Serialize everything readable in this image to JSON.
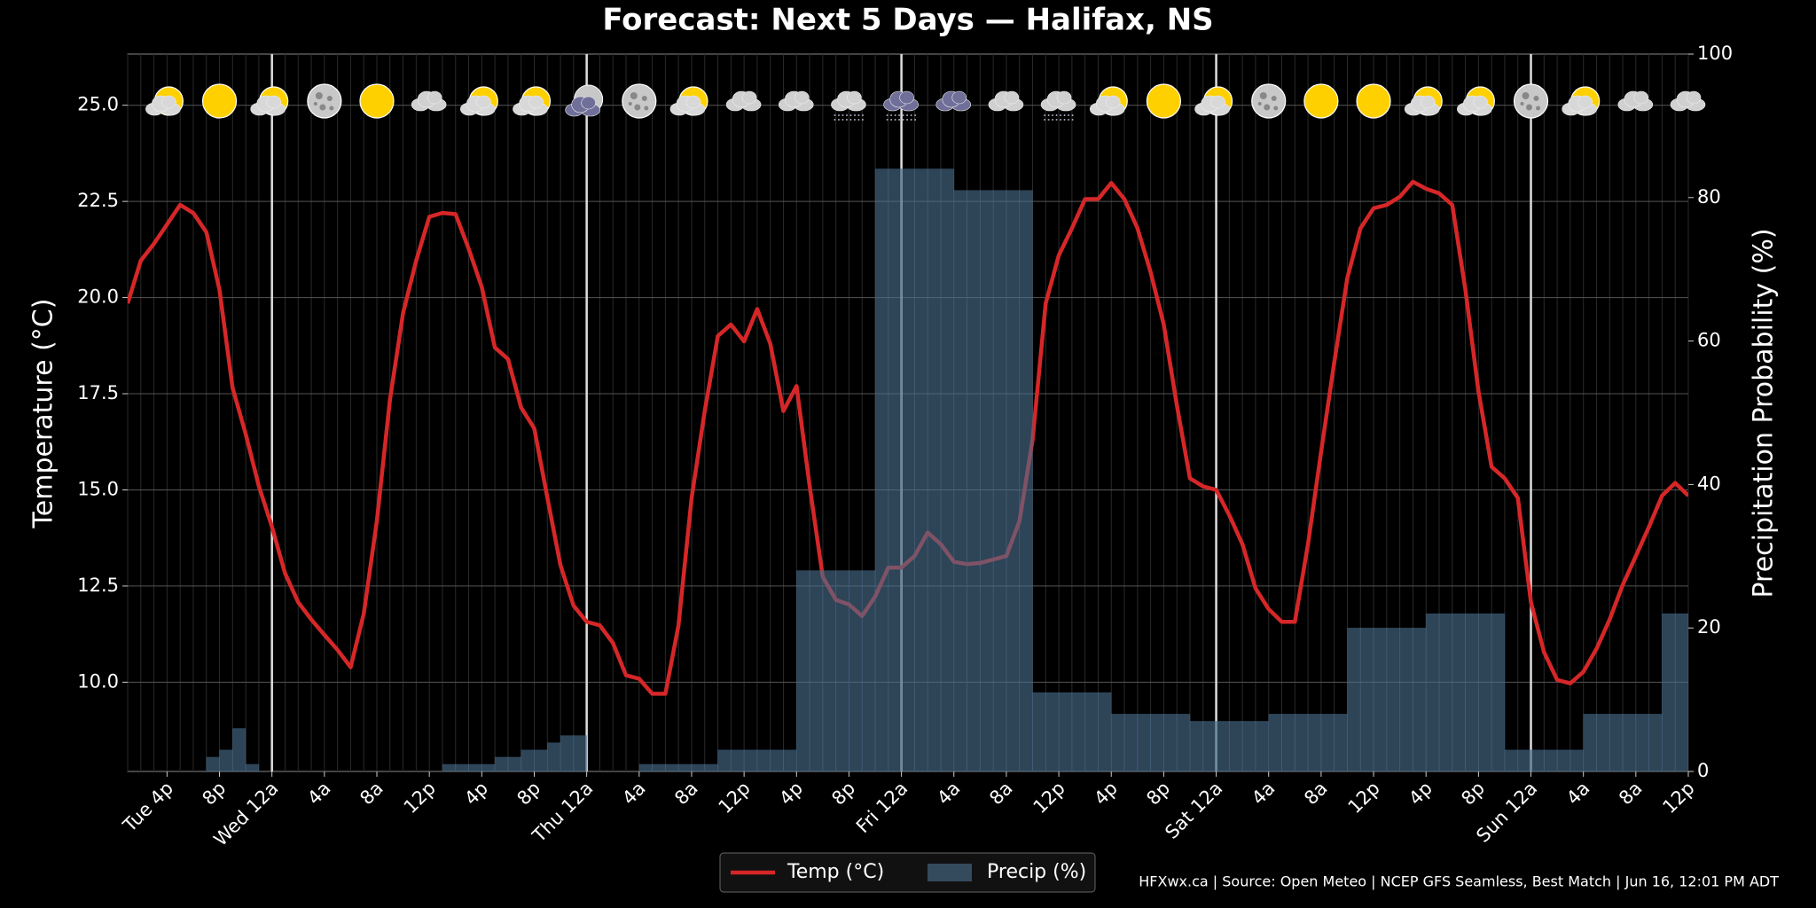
{
  "chart_data": {
    "type": "line_bar",
    "title": "Forecast: Next 5 Days — Halifax, NS",
    "y_label": "Temperature (°C)",
    "y2_label": "Precipitation Probability (%)",
    "source": "HFXwx.ca | Source: Open Meteo | NCEP GFS Seamless, Best Match | Jun 16, 12:01 PM ADT",
    "categories": [
      null,
      null,
      null,
      "Tue 4p",
      null,
      null,
      null,
      "8p",
      null,
      null,
      null,
      "Wed 12a",
      null,
      null,
      null,
      "4a",
      null,
      null,
      null,
      "8a",
      null,
      null,
      null,
      "12p",
      null,
      null,
      null,
      "4p",
      null,
      null,
      null,
      "8p",
      null,
      null,
      null,
      "Thu 12a",
      null,
      null,
      null,
      "4a",
      null,
      null,
      null,
      "8a",
      null,
      null,
      null,
      "12p",
      null,
      null,
      null,
      "4p",
      null,
      null,
      null,
      "8p",
      null,
      null,
      null,
      "Fri 12a",
      null,
      null,
      null,
      "4a",
      null,
      null,
      null,
      "8a",
      null,
      null,
      null,
      "12p",
      null,
      null,
      null,
      "4p",
      null,
      null,
      null,
      "8p",
      null,
      null,
      null,
      "Sat 12a",
      null,
      null,
      null,
      "4a",
      null,
      null,
      null,
      "8a",
      null,
      null,
      null,
      "12p",
      null,
      null,
      null,
      "4p",
      null,
      null,
      null,
      "8p",
      null,
      null,
      null,
      "Sun 12a",
      null,
      null,
      null,
      "4a",
      null,
      null,
      null,
      "8a",
      null,
      null,
      null,
      "12p"
    ],
    "series": [
      {
        "name": "Temp (°C)",
        "type": "line",
        "color": "#d62728",
        "values": [
          19.85,
          20.96,
          21.4,
          21.9,
          22.41,
          22.2,
          21.7,
          20.2,
          17.65,
          16.45,
          15.1,
          14.04,
          12.83,
          12.08,
          11.63,
          11.23,
          10.84,
          10.39,
          11.78,
          14.19,
          17.35,
          19.6,
          20.96,
          22.1,
          22.2,
          22.17,
          21.27,
          20.27,
          18.7,
          18.4,
          17.14,
          16.6,
          14.8,
          13.04,
          11.99,
          11.57,
          11.48,
          11.02,
          10.18,
          10.09,
          9.7,
          9.7,
          11.48,
          14.79,
          17.05,
          19.0,
          19.3,
          18.86,
          19.7,
          18.8,
          17.05,
          17.7,
          15.1,
          12.74,
          12.14,
          12.02,
          11.72,
          12.23,
          12.98,
          12.98,
          13.28,
          13.89,
          13.59,
          13.13,
          13.07,
          13.1,
          13.19,
          13.28,
          14.19,
          16.3,
          19.85,
          21.1,
          21.8,
          22.56,
          22.56,
          22.98,
          22.56,
          21.8,
          20.66,
          19.3,
          17.2,
          15.3,
          15.09,
          15.0,
          14.34,
          13.59,
          12.44,
          11.9,
          11.57,
          11.57,
          13.59,
          15.99,
          18.31,
          20.51,
          21.8,
          22.32,
          22.41,
          22.62,
          23.01,
          22.83,
          22.71,
          22.41,
          20.21,
          17.56,
          15.6,
          15.3,
          14.79,
          12.08,
          10.78,
          10.06,
          9.97,
          10.27,
          10.87,
          11.63,
          12.53,
          13.28,
          14.04,
          14.85,
          15.18,
          14.85
        ]
      },
      {
        "name": "Precip (%)",
        "type": "bar",
        "axis": "y2",
        "color": "#4a6d8c",
        "values": [
          0,
          0,
          0,
          0,
          0,
          0,
          2,
          3,
          6,
          1,
          0,
          0,
          0,
          0,
          0,
          0,
          0,
          0,
          0,
          0,
          0,
          0,
          0,
          0,
          1,
          1,
          1,
          1,
          2,
          2,
          3,
          3,
          4,
          5,
          5,
          0,
          0,
          0,
          0,
          1,
          1,
          1,
          1,
          1,
          1,
          3,
          3,
          3,
          3,
          3,
          3,
          28,
          28,
          28,
          28,
          28,
          28,
          84,
          84,
          84,
          84,
          84,
          84,
          81,
          81,
          81,
          81,
          81,
          81,
          11,
          11,
          11,
          11,
          11,
          11,
          8,
          8,
          8,
          8,
          8,
          8,
          7,
          7,
          7,
          7,
          7,
          7,
          8,
          8,
          8,
          8,
          8,
          8,
          20,
          20,
          20,
          20,
          20,
          20,
          22,
          22,
          22,
          22,
          22,
          22,
          3,
          3,
          3,
          3,
          3,
          3,
          8,
          8,
          8,
          8,
          8,
          8,
          22,
          22,
          22
        ]
      }
    ],
    "ylim": [
      7.68,
      26.33
    ],
    "yticks": [
      {
        "value": 10,
        "label": "10.0"
      },
      {
        "value": 12.5,
        "label": "12.5"
      },
      {
        "value": 15,
        "label": "15.0"
      },
      {
        "value": 17.5,
        "label": "17.5"
      },
      {
        "value": 20,
        "label": "20.0"
      },
      {
        "value": 22.5,
        "label": "22.5"
      },
      {
        "value": 25,
        "label": "25.0"
      }
    ],
    "y2lim": [
      0,
      100
    ],
    "y2ticks": [
      0,
      20,
      40,
      60,
      80,
      100
    ],
    "grid": true,
    "legend": "bottom"
  }
}
